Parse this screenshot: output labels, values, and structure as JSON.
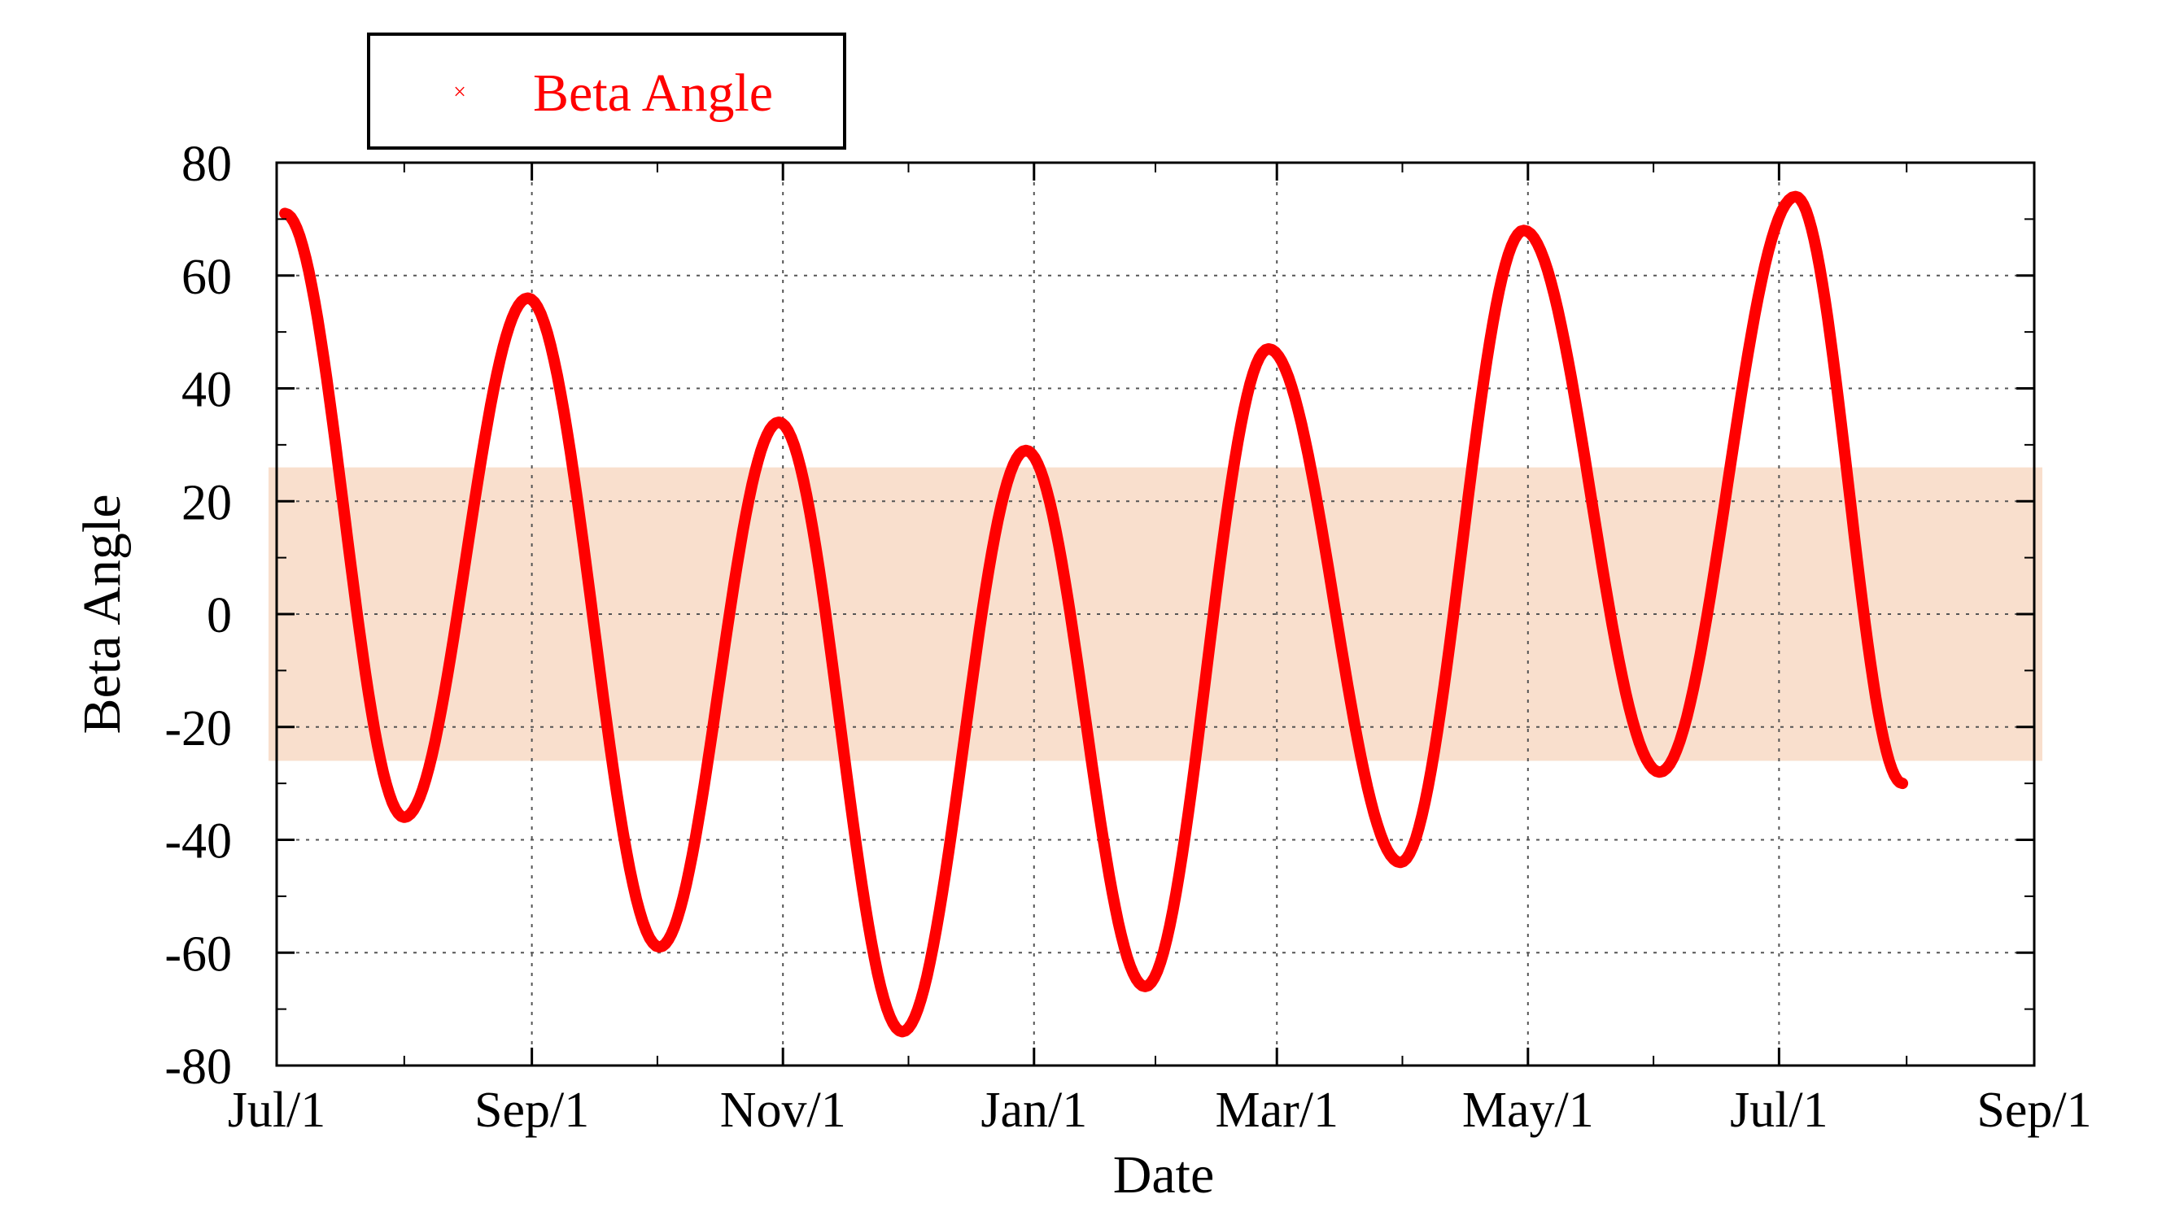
{
  "chart_data": {
    "type": "scatter",
    "title": "",
    "xlabel": "Date",
    "ylabel": "Beta Angle",
    "x_unit": "days since Jul/1",
    "xlim": [
      0,
      427
    ],
    "ylim": [
      -80,
      80
    ],
    "x_ticks": [
      {
        "label": "Jul/1",
        "day": 0
      },
      {
        "label": "Sep/1",
        "day": 62
      },
      {
        "label": "Nov/1",
        "day": 123
      },
      {
        "label": "Jan/1",
        "day": 184
      },
      {
        "label": "Mar/1",
        "day": 243
      },
      {
        "label": "May/1",
        "day": 304
      },
      {
        "label": "Jul/1",
        "day": 365
      },
      {
        "label": "Sep/1",
        "day": 427
      }
    ],
    "y_ticks": [
      80,
      60,
      40,
      20,
      0,
      -20,
      -40,
      -60,
      -80
    ],
    "grid": true,
    "band": {
      "y_min": -26,
      "y_max": 26,
      "color": "#f9dfcd"
    },
    "series": [
      {
        "name": "Beta Angle",
        "marker": "×",
        "color": "#ff0000",
        "extrema": [
          {
            "day": 2,
            "beta": 71
          },
          {
            "day": 31,
            "beta": -36
          },
          {
            "day": 61,
            "beta": 56
          },
          {
            "day": 93,
            "beta": -59
          },
          {
            "day": 122,
            "beta": 34
          },
          {
            "day": 152,
            "beta": -74
          },
          {
            "day": 182,
            "beta": 29
          },
          {
            "day": 211,
            "beta": -66
          },
          {
            "day": 241,
            "beta": 47
          },
          {
            "day": 273,
            "beta": -44
          },
          {
            "day": 303,
            "beta": 68
          },
          {
            "day": 336,
            "beta": -28
          },
          {
            "day": 369,
            "beta": 74
          },
          {
            "day": 395,
            "beta": -30
          }
        ]
      }
    ],
    "legend": {
      "position": "top-left",
      "label": "Beta Angle"
    }
  }
}
